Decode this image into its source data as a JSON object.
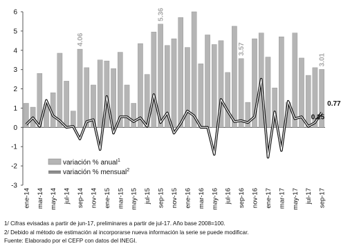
{
  "chart_data": {
    "type": "bar",
    "title": "",
    "xlabel": "",
    "ylabel": "",
    "ylim": [
      -3,
      6
    ],
    "yticks": [
      "-3",
      "-2",
      "-1",
      "0",
      "1",
      "2",
      "3",
      "4",
      "5",
      "6"
    ],
    "grid": false,
    "legend_position": "lower-left",
    "categories": [
      "ene-14",
      "feb-14",
      "mar-14",
      "abr-14",
      "may-14",
      "jun-14",
      "jul-14",
      "ago-14",
      "sep-14",
      "oct-14",
      "nov-14",
      "dic-14",
      "ene-15",
      "feb-15",
      "mar-15",
      "abr-15",
      "may-15",
      "jun-15",
      "jul-15",
      "ago-15",
      "sep-15",
      "oct-15",
      "nov-15",
      "dic-15",
      "ene-16",
      "feb-16",
      "mar-16",
      "abr-16",
      "may-16",
      "jun-16",
      "jul-16",
      "ago-16",
      "sep-16",
      "oct-16",
      "nov-16",
      "dic-16",
      "ene-17",
      "feb-17",
      "mar-17",
      "abr-17",
      "may-17",
      "jun-17",
      "jul-17",
      "ago-17",
      "sep-17"
    ],
    "x_tick_labels": [
      "ene-14",
      "mar-14",
      "may-14",
      "jul-14",
      "sep-14",
      "nov-14",
      "ene-15",
      "mar-15",
      "may-15",
      "jul-15",
      "sep-15",
      "nov-15",
      "ene-16",
      "mar-16",
      "may-16",
      "jul-16",
      "sep-16",
      "nov-16",
      "ene-17",
      "mar-17",
      "may-17",
      "jul-17",
      "sep-17"
    ],
    "series": [
      {
        "name": "variación % anual",
        "name_sup": "1",
        "type": "bar",
        "color": "#b5b5b5",
        "values": [
          1.25,
          1.05,
          2.8,
          1.2,
          1.8,
          3.85,
          2.4,
          0.85,
          4.06,
          3.1,
          2.2,
          3.5,
          3.45,
          3.05,
          3.9,
          2.2,
          1.25,
          4.35,
          2.75,
          4.95,
          5.36,
          4.25,
          4.6,
          5.7,
          4.15,
          6.0,
          3.3,
          4.8,
          4.3,
          4.5,
          2.85,
          5.25,
          3.57,
          1.3,
          4.6,
          4.9,
          3.65,
          2.05,
          4.7,
          1.3,
          4.9,
          3.6,
          2.7,
          3.1,
          3.01
        ]
      },
      {
        "name": "variación % mensual",
        "name_sup": "2",
        "type": "line",
        "color": "#111111",
        "values": [
          0.15,
          0.5,
          0.05,
          1.4,
          0.6,
          0.35,
          0.0,
          0.05,
          -0.6,
          0.3,
          0.4,
          -1.15,
          1.6,
          -0.3,
          0.55,
          0.55,
          0.3,
          0.5,
          0.05,
          1.7,
          0.25,
          0.75,
          -0.3,
          0.2,
          0.85,
          0.6,
          0.0,
          0.0,
          -1.4,
          1.45,
          0.85,
          0.3,
          0.35,
          0.25,
          0.55,
          2.5,
          -1.55,
          0.8,
          -1.2,
          1.35,
          0.45,
          0.55,
          0.05,
          0.25,
          0.77
        ]
      }
    ],
    "annotations": [
      {
        "text": "4.06",
        "index": 8,
        "series": "anual",
        "color": "#a8a8a8"
      },
      {
        "text": "5.36",
        "index": 20,
        "series": "anual",
        "color": "#a8a8a8"
      },
      {
        "text": "3.57",
        "index": 32,
        "series": "anual",
        "color": "#a8a8a8"
      },
      {
        "text": "3.01",
        "index": 44,
        "series": "anual",
        "color": "#a8a8a8"
      },
      {
        "text": "0.25",
        "index": 43,
        "series": "mensual",
        "color": "#111111"
      },
      {
        "text": "0.77",
        "index": 44,
        "series": "mensual",
        "color": "#111111"
      }
    ]
  },
  "footnotes": {
    "note1": "1/ Cifras evisadas a partir de jun-17, preliminares a partir de jul-17. Año base 2008=100.",
    "note2": "2/ Debido al método de estimación al incorporarse nueva información la serie se puede modificar.",
    "source": "Fuente: Elaborado por el CEFP con datos del INEGI."
  }
}
